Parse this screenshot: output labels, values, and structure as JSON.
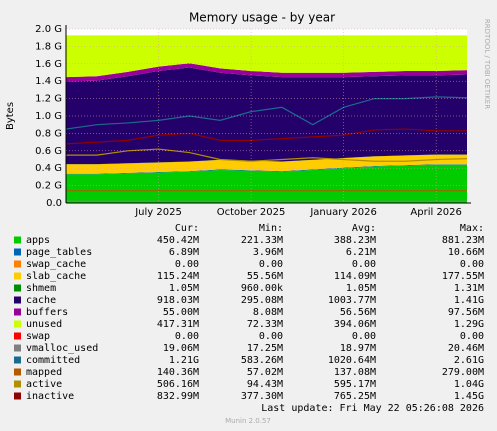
{
  "chart_data": {
    "type": "area",
    "title": "Memory usage - by year",
    "ylabel": "Bytes",
    "watermark": "RRDTOOL / TOBI OETIKER",
    "x": [
      "2025-04",
      "2025-05",
      "2025-06",
      "2025-07",
      "2025-08",
      "2025-09",
      "2025-10",
      "2025-11",
      "2025-12",
      "2026-01",
      "2026-02",
      "2026-03",
      "2026-04",
      "2026-05"
    ],
    "xlim": [
      "2025-04",
      "2026-05"
    ],
    "xticks": [
      {
        "value": "2025-07",
        "label": "July 2025"
      },
      {
        "value": "2025-10",
        "label": "October 2025"
      },
      {
        "value": "2026-01",
        "label": "January 2026"
      },
      {
        "value": "2026-04",
        "label": "April 2026"
      }
    ],
    "ylim": [
      0,
      2.0
    ],
    "yticks": [
      {
        "value": 0,
        "label": "0.0"
      },
      {
        "value": 0.2,
        "label": "0.2 G"
      },
      {
        "value": 0.4,
        "label": "0.4 G"
      },
      {
        "value": 0.6,
        "label": "0.6 G"
      },
      {
        "value": 0.8,
        "label": "0.8 G"
      },
      {
        "value": 1.0,
        "label": "1.0 G"
      },
      {
        "value": 1.2,
        "label": "1.2 G"
      },
      {
        "value": 1.4,
        "label": "1.4 G"
      },
      {
        "value": 1.6,
        "label": "1.6 G"
      },
      {
        "value": 1.8,
        "label": "1.8 G"
      },
      {
        "value": 2.0,
        "label": "2.0 G"
      }
    ],
    "grid": true,
    "stat_headers": [
      "Cur:",
      "Min:",
      "Avg:",
      "Max:"
    ],
    "series": [
      {
        "name": "apps",
        "color": "#00cc00",
        "style": "area",
        "values": [
          0.33,
          0.33,
          0.34,
          0.35,
          0.36,
          0.38,
          0.37,
          0.36,
          0.38,
          0.4,
          0.42,
          0.43,
          0.44,
          0.44
        ],
        "stats": [
          "450.42M",
          "221.33M",
          "388.23M",
          "881.23M"
        ]
      },
      {
        "name": "page_tables",
        "color": "#0066b3",
        "style": "area",
        "values": [
          0.006,
          0.006,
          0.006,
          0.006,
          0.006,
          0.006,
          0.006,
          0.006,
          0.006,
          0.006,
          0.006,
          0.006,
          0.006,
          0.006
        ],
        "stats": [
          "6.89M",
          "3.96M",
          "6.21M",
          "10.66M"
        ]
      },
      {
        "name": "swap_cache",
        "color": "#ff8000",
        "style": "area",
        "values": [
          0,
          0,
          0,
          0,
          0,
          0,
          0,
          0,
          0,
          0,
          0,
          0,
          0,
          0
        ],
        "stats": [
          "0.00",
          "0.00",
          "0.00",
          "0.00"
        ]
      },
      {
        "name": "slab_cache",
        "color": "#ffcc00",
        "style": "area",
        "values": [
          0.11,
          0.11,
          0.11,
          0.11,
          0.11,
          0.11,
          0.11,
          0.11,
          0.11,
          0.11,
          0.11,
          0.11,
          0.11,
          0.11
        ],
        "stats": [
          "115.24M",
          "55.56M",
          "114.09M",
          "177.55M"
        ]
      },
      {
        "name": "shmem",
        "color": "#008f00",
        "style": "area",
        "values": [
          0.001,
          0.001,
          0.001,
          0.001,
          0.001,
          0.001,
          0.001,
          0.001,
          0.001,
          0.001,
          0.001,
          0.001,
          0.001,
          0.001
        ],
        "stats": [
          "1.05M",
          "960.00k",
          "1.05M",
          "1.31M"
        ]
      },
      {
        "name": "cache",
        "color": "#24006b",
        "style": "area",
        "values": [
          0.95,
          0.96,
          1.0,
          1.05,
          1.08,
          1.0,
          0.98,
          0.97,
          0.95,
          0.93,
          0.92,
          0.92,
          0.91,
          0.92
        ],
        "stats": [
          "918.03M",
          "295.08M",
          "1003.77M",
          "1.41G"
        ]
      },
      {
        "name": "buffers",
        "color": "#990099",
        "style": "area",
        "values": [
          0.05,
          0.05,
          0.05,
          0.05,
          0.05,
          0.05,
          0.05,
          0.05,
          0.05,
          0.05,
          0.05,
          0.05,
          0.05,
          0.05
        ],
        "stats": [
          "55.00M",
          "8.08M",
          "56.56M",
          "97.56M"
        ]
      },
      {
        "name": "unused",
        "color": "#ccff00",
        "style": "area",
        "values": [
          0.48,
          0.47,
          0.42,
          0.36,
          0.32,
          0.38,
          0.41,
          0.43,
          0.43,
          0.43,
          0.42,
          0.41,
          0.41,
          0.4
        ],
        "stats": [
          "417.31M",
          "72.33M",
          "394.06M",
          "1.29G"
        ]
      },
      {
        "name": "swap",
        "color": "#ff0000",
        "style": "area",
        "values": [
          0,
          0,
          0,
          0,
          0,
          0,
          0,
          0,
          0,
          0,
          0,
          0,
          0,
          0
        ],
        "stats": [
          "0.00",
          "0.00",
          "0.00",
          "0.00"
        ]
      },
      {
        "name": "vmalloc_used",
        "color": "#808080",
        "style": "line",
        "values": [
          0.019,
          0.019,
          0.019,
          0.019,
          0.019,
          0.019,
          0.019,
          0.019,
          0.019,
          0.019,
          0.019,
          0.019,
          0.019,
          0.019
        ],
        "stats": [
          "19.06M",
          "17.25M",
          "18.97M",
          "20.46M"
        ]
      },
      {
        "name": "committed",
        "color": "#1a6b8f",
        "style": "line",
        "values": [
          0.85,
          0.9,
          0.92,
          0.95,
          1.0,
          0.95,
          1.05,
          1.1,
          0.9,
          1.1,
          1.2,
          1.2,
          1.22,
          1.21
        ],
        "stats": [
          "1.21G",
          "583.26M",
          "1020.64M",
          "2.61G"
        ]
      },
      {
        "name": "mapped",
        "color": "#b35a00",
        "style": "line",
        "values": [
          0.14,
          0.14,
          0.14,
          0.14,
          0.14,
          0.14,
          0.14,
          0.14,
          0.14,
          0.14,
          0.14,
          0.14,
          0.14,
          0.14
        ],
        "stats": [
          "140.36M",
          "57.02M",
          "137.08M",
          "279.00M"
        ]
      },
      {
        "name": "active",
        "color": "#b38f00",
        "style": "line",
        "values": [
          0.55,
          0.55,
          0.6,
          0.62,
          0.58,
          0.5,
          0.48,
          0.5,
          0.52,
          0.5,
          0.48,
          0.48,
          0.5,
          0.51
        ],
        "stats": [
          "506.16M",
          "94.43M",
          "595.17M",
          "1.04G"
        ]
      },
      {
        "name": "inactive",
        "color": "#8f0000",
        "style": "line",
        "values": [
          0.68,
          0.7,
          0.72,
          0.78,
          0.8,
          0.72,
          0.72,
          0.74,
          0.76,
          0.78,
          0.84,
          0.85,
          0.83,
          0.83
        ],
        "stats": [
          "832.99M",
          "377.30M",
          "765.25M",
          "1.45G"
        ]
      }
    ],
    "last_update": "Last update: Fri May 22 05:26:08 2026",
    "footer": "Munin 2.0.57"
  }
}
